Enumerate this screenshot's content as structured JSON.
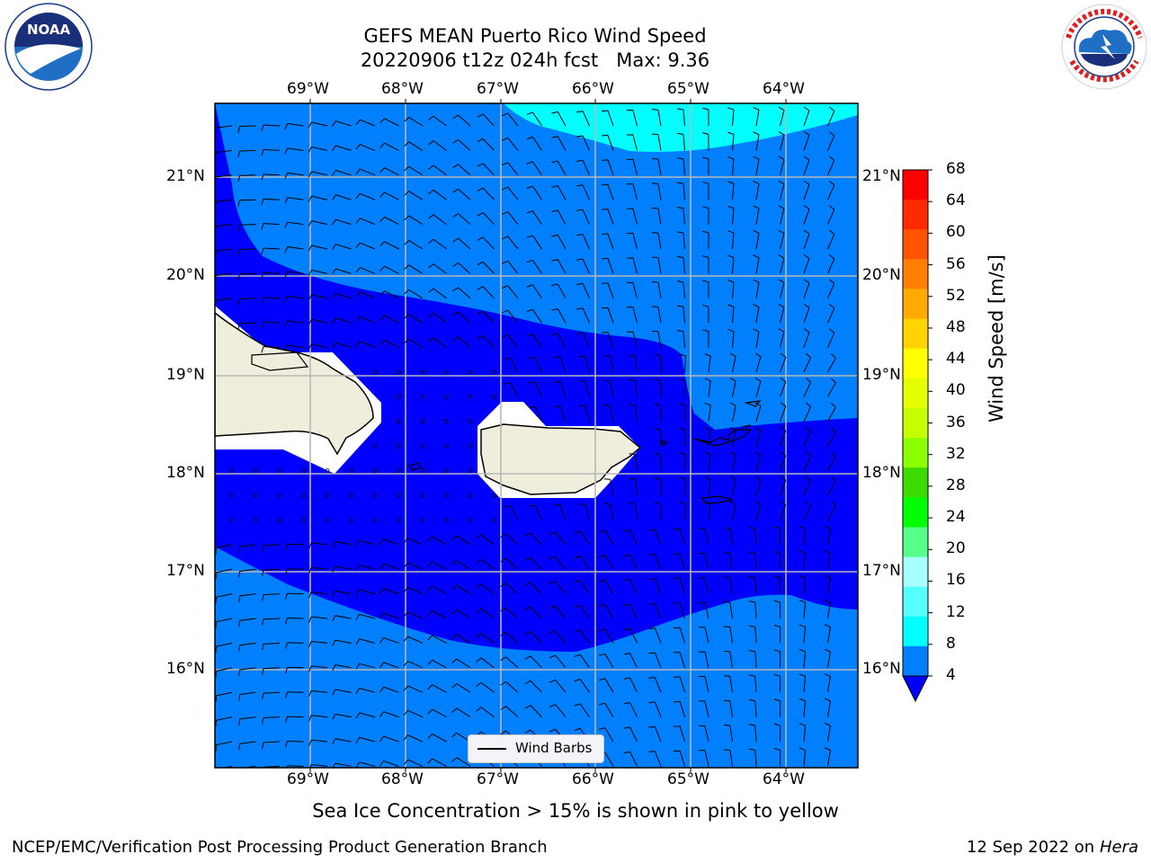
{
  "title_line1": "GEFS MEAN Puerto Rico Wind Speed",
  "title_line2": "20220906 t12z 024h fcst   Max: 9.36",
  "logos": {
    "left": {
      "name": "noaa-logo",
      "text": "NOAA",
      "ring_text": "NATIONAL OCEANIC AND ATMOSPHERIC ADMINISTRATION · U.S. DEPARTMENT OF COMMERCE"
    },
    "right": {
      "name": "nws-logo",
      "ring_text": "NATIONAL WEATHER SERVICE"
    }
  },
  "map": {
    "lon_ticks": [
      "69°W",
      "68°W",
      "67°W",
      "66°W",
      "65°W",
      "64°W"
    ],
    "lat_ticks": [
      "21°N",
      "20°N",
      "19°N",
      "18°N",
      "17°N",
      "16°N"
    ],
    "legend_label": "Wind Barbs",
    "land_color": "#efeedd",
    "fills": {
      "4-8": "#0080ff",
      "8-12": "#00ffff",
      "below-4": "#0000ff"
    }
  },
  "colorbar": {
    "title": "Wind Speed [m/s]",
    "labels": [
      "68",
      "64",
      "60",
      "56",
      "52",
      "48",
      "44",
      "40",
      "36",
      "32",
      "28",
      "24",
      "20",
      "16",
      "12",
      "8",
      "4"
    ],
    "colors": [
      "#ff0000",
      "#ff2a00",
      "#ff5500",
      "#ff8000",
      "#ffaa00",
      "#ffd400",
      "#ffff00",
      "#e6ff00",
      "#c8ff00",
      "#8cff00",
      "#3cdc00",
      "#00ff00",
      "#55ff88",
      "#a8ffff",
      "#55ffff",
      "#00ffff",
      "#0080ff"
    ],
    "extend_color": "#0000ff"
  },
  "caption": "Sea Ice Concentration > 15% is shown in pink to yellow",
  "footer_left": "NCEP/EMC/Verification Post Processing Product Generation Branch",
  "footer_date": "12 Sep 2022 on",
  "footer_host": "Hera"
}
